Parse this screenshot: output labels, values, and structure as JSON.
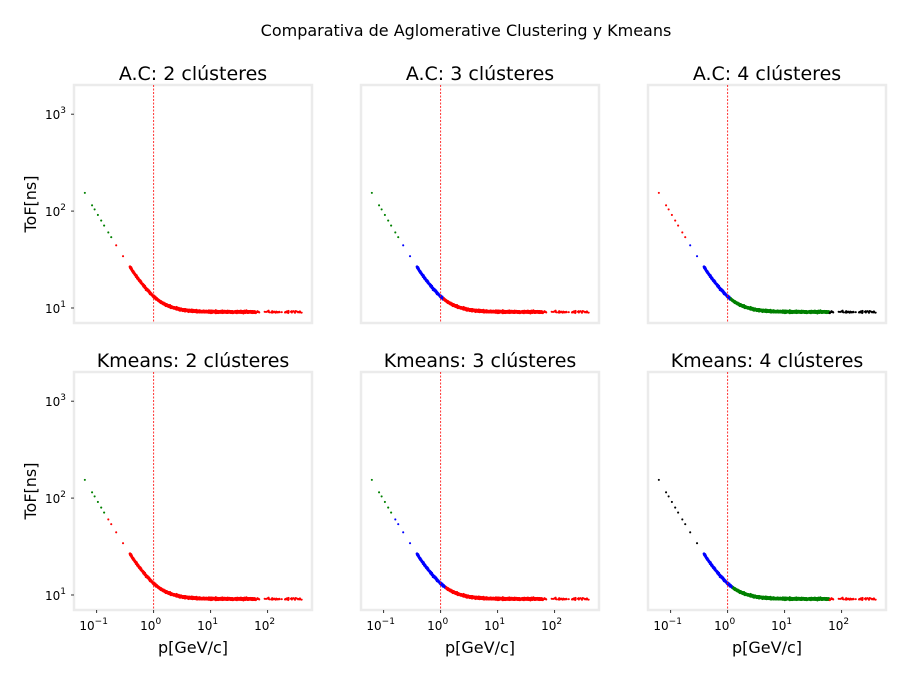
{
  "figure_title": "Comparativa de Aglomerative Clustering y Kmeans",
  "colors": {
    "red": "#ff0000",
    "green": "#008000",
    "blue": "#0000ff",
    "black": "#000000",
    "threshold_line": "#ff0000"
  },
  "chart_data": [
    {
      "type": "scatter",
      "title": "A.C: 2 clústeres",
      "xlabel": "",
      "ylabel": "ToF[ns]",
      "xscale": "log",
      "yscale": "log",
      "xlim": [
        0.04,
        600
      ],
      "ylim": [
        7,
        2000
      ],
      "vline_x": 1,
      "segments": [
        {
          "from": 0.06,
          "to": 0.22,
          "color": "green"
        },
        {
          "from": 0.22,
          "to": 400,
          "color": "red"
        }
      ]
    },
    {
      "type": "scatter",
      "title": "A.C: 3 clústeres",
      "xlabel": "",
      "ylabel": "",
      "xscale": "log",
      "yscale": "log",
      "xlim": [
        0.04,
        600
      ],
      "ylim": [
        7,
        2000
      ],
      "vline_x": 1,
      "segments": [
        {
          "from": 0.06,
          "to": 0.22,
          "color": "green"
        },
        {
          "from": 0.22,
          "to": 1.1,
          "color": "blue"
        },
        {
          "from": 1.1,
          "to": 400,
          "color": "red"
        }
      ]
    },
    {
      "type": "scatter",
      "title": "A.C: 4 clústeres",
      "xlabel": "",
      "ylabel": "",
      "xscale": "log",
      "yscale": "log",
      "xlim": [
        0.04,
        600
      ],
      "ylim": [
        7,
        2000
      ],
      "vline_x": 1,
      "segments": [
        {
          "from": 0.06,
          "to": 0.22,
          "color": "red"
        },
        {
          "from": 0.22,
          "to": 1.1,
          "color": "blue"
        },
        {
          "from": 1.1,
          "to": 60,
          "color": "green"
        },
        {
          "from": 60,
          "to": 400,
          "color": "black"
        }
      ]
    },
    {
      "type": "scatter",
      "title": "Kmeans: 2 clústeres",
      "xlabel": "p[GeV/c]",
      "ylabel": "ToF[ns]",
      "xscale": "log",
      "yscale": "log",
      "xlim": [
        0.04,
        600
      ],
      "ylim": [
        7,
        2000
      ],
      "vline_x": 1,
      "segments": [
        {
          "from": 0.06,
          "to": 0.15,
          "color": "green"
        },
        {
          "from": 0.15,
          "to": 400,
          "color": "red"
        }
      ]
    },
    {
      "type": "scatter",
      "title": "Kmeans: 3 clústeres",
      "xlabel": "p[GeV/c]",
      "ylabel": "",
      "xscale": "log",
      "yscale": "log",
      "xlim": [
        0.04,
        600
      ],
      "ylim": [
        7,
        2000
      ],
      "vline_x": 1,
      "segments": [
        {
          "from": 0.06,
          "to": 0.15,
          "color": "green"
        },
        {
          "from": 0.15,
          "to": 1.2,
          "color": "blue"
        },
        {
          "from": 1.2,
          "to": 400,
          "color": "red"
        }
      ]
    },
    {
      "type": "scatter",
      "title": "Kmeans: 4 clústeres",
      "xlabel": "p[GeV/c]",
      "ylabel": "",
      "xscale": "log",
      "yscale": "log",
      "xlim": [
        0.04,
        600
      ],
      "ylim": [
        7,
        2000
      ],
      "vline_x": 1,
      "segments": [
        {
          "from": 0.06,
          "to": 0.3,
          "color": "black"
        },
        {
          "from": 0.3,
          "to": 1.2,
          "color": "blue"
        },
        {
          "from": 1.2,
          "to": 60,
          "color": "green"
        },
        {
          "from": 60,
          "to": 400,
          "color": "red"
        }
      ]
    }
  ],
  "xticks": [
    {
      "base": "10",
      "exp": "−1",
      "value": 0.1
    },
    {
      "base": "10",
      "exp": "0",
      "value": 1
    },
    {
      "base": "10",
      "exp": "1",
      "value": 10
    },
    {
      "base": "10",
      "exp": "2",
      "value": 100
    }
  ],
  "yticks": [
    {
      "base": "10",
      "exp": "1",
      "value": 10
    },
    {
      "base": "10",
      "exp": "2",
      "value": 100
    },
    {
      "base": "10",
      "exp": "3",
      "value": 1000
    }
  ]
}
